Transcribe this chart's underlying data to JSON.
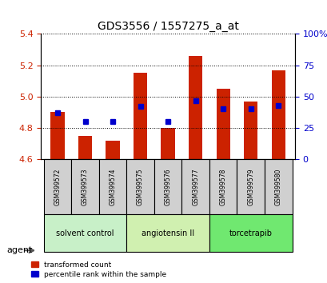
{
  "title": "GDS3556 / 1557275_a_at",
  "samples": [
    "GSM399572",
    "GSM399573",
    "GSM399574",
    "GSM399575",
    "GSM399576",
    "GSM399577",
    "GSM399578",
    "GSM399579",
    "GSM399580"
  ],
  "transformed_counts": [
    4.9,
    4.75,
    4.72,
    5.15,
    4.8,
    5.26,
    5.05,
    4.97,
    5.17
  ],
  "percentile_ranks": [
    37,
    30,
    30,
    42,
    30,
    47,
    40,
    40,
    43
  ],
  "groups": [
    {
      "label": "solvent control",
      "indices": [
        0,
        1,
        2
      ],
      "color": "#c8f0c8"
    },
    {
      "label": "angiotensin II",
      "indices": [
        3,
        4,
        5
      ],
      "color": "#d0f0b0"
    },
    {
      "label": "torcetrapib",
      "indices": [
        6,
        7,
        8
      ],
      "color": "#70e870"
    }
  ],
  "ymin": 4.6,
  "ymax": 5.4,
  "yticks_left": [
    4.6,
    4.8,
    5.0,
    5.2,
    5.4
  ],
  "yticks_right": [
    0,
    25,
    50,
    75,
    100
  ],
  "bar_color": "#cc2200",
  "dot_color": "#0000cc",
  "bar_base": 4.6,
  "background_color": "#ffffff",
  "grid_color": "#000000",
  "tick_label_color_left": "#cc2200",
  "tick_label_color_right": "#0000cc",
  "legend_items": [
    "transformed count",
    "percentile rank within the sample"
  ],
  "agent_label": "agent",
  "xlabel_color": "#333333",
  "sample_bg_color": "#d0d0d0"
}
